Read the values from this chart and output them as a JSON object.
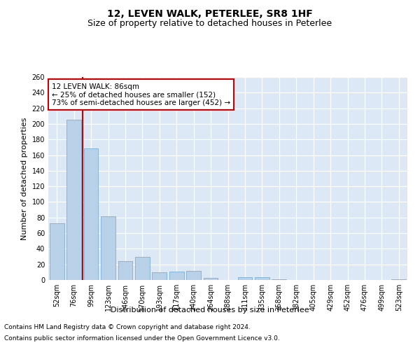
{
  "title": "12, LEVEN WALK, PETERLEE, SR8 1HF",
  "subtitle": "Size of property relative to detached houses in Peterlee",
  "xlabel": "Distribution of detached houses by size in Peterlee",
  "ylabel": "Number of detached properties",
  "categories": [
    "52sqm",
    "76sqm",
    "99sqm",
    "123sqm",
    "146sqm",
    "170sqm",
    "193sqm",
    "217sqm",
    "240sqm",
    "264sqm",
    "288sqm",
    "311sqm",
    "335sqm",
    "358sqm",
    "382sqm",
    "405sqm",
    "429sqm",
    "452sqm",
    "476sqm",
    "499sqm",
    "523sqm"
  ],
  "values": [
    73,
    205,
    169,
    82,
    24,
    30,
    10,
    11,
    12,
    3,
    0,
    4,
    4,
    1,
    0,
    0,
    0,
    0,
    0,
    0,
    1
  ],
  "bar_color": "#b8d0e8",
  "bar_edge_color": "#7aafd4",
  "vline_x": 1.5,
  "vline_color": "#cc0000",
  "annotation_text": "12 LEVEN WALK: 86sqm\n← 25% of detached houses are smaller (152)\n73% of semi-detached houses are larger (452) →",
  "annotation_box_color": "#ffffff",
  "annotation_box_edge": "#cc0000",
  "ylim": [
    0,
    260
  ],
  "yticks": [
    0,
    20,
    40,
    60,
    80,
    100,
    120,
    140,
    160,
    180,
    200,
    220,
    240,
    260
  ],
  "background_color": "#dce8f5",
  "grid_color": "#ffffff",
  "footer_line1": "Contains HM Land Registry data © Crown copyright and database right 2024.",
  "footer_line2": "Contains public sector information licensed under the Open Government Licence v3.0.",
  "title_fontsize": 10,
  "subtitle_fontsize": 9,
  "xlabel_fontsize": 8,
  "ylabel_fontsize": 8,
  "tick_fontsize": 7,
  "footer_fontsize": 6.5,
  "annotation_fontsize": 7.5
}
